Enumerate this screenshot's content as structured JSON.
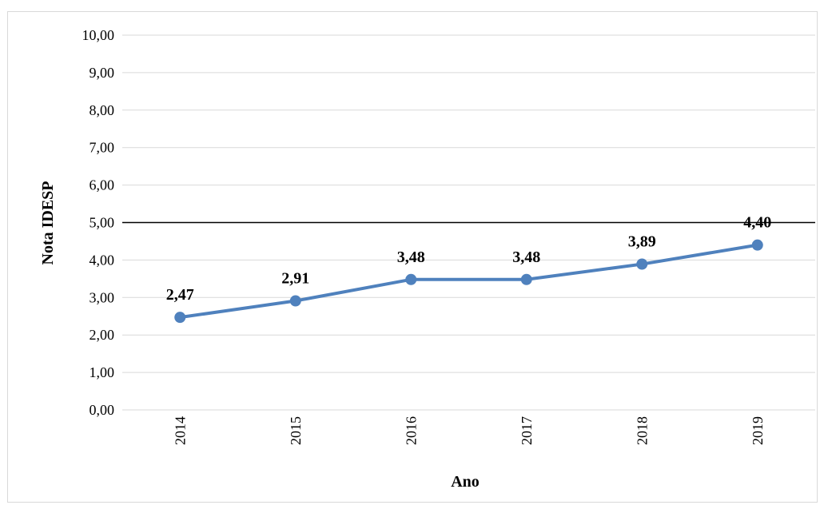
{
  "chart_data": {
    "type": "line",
    "title": "",
    "xlabel": "Ano",
    "ylabel": "Nota IDESP",
    "categories": [
      "2014",
      "2015",
      "2016",
      "2017",
      "2018",
      "2019"
    ],
    "series": [
      {
        "values": [
          2.47,
          2.91,
          3.48,
          3.48,
          3.89,
          4.4
        ],
        "labels": [
          "2,47",
          "2,91",
          "3,48",
          "3,48",
          "3,89",
          "4,40"
        ],
        "color": "#4f81bd"
      }
    ],
    "ylim": [
      0,
      10
    ],
    "yticks": [
      "0,00",
      "1,00",
      "2,00",
      "3,00",
      "4,00",
      "5,00",
      "6,00",
      "7,00",
      "8,00",
      "9,00",
      "10,00"
    ],
    "reference_line": {
      "value": 5.0,
      "color": "#000000"
    },
    "grid": true,
    "gridColor": "#d9d9d9",
    "legend": "none"
  }
}
